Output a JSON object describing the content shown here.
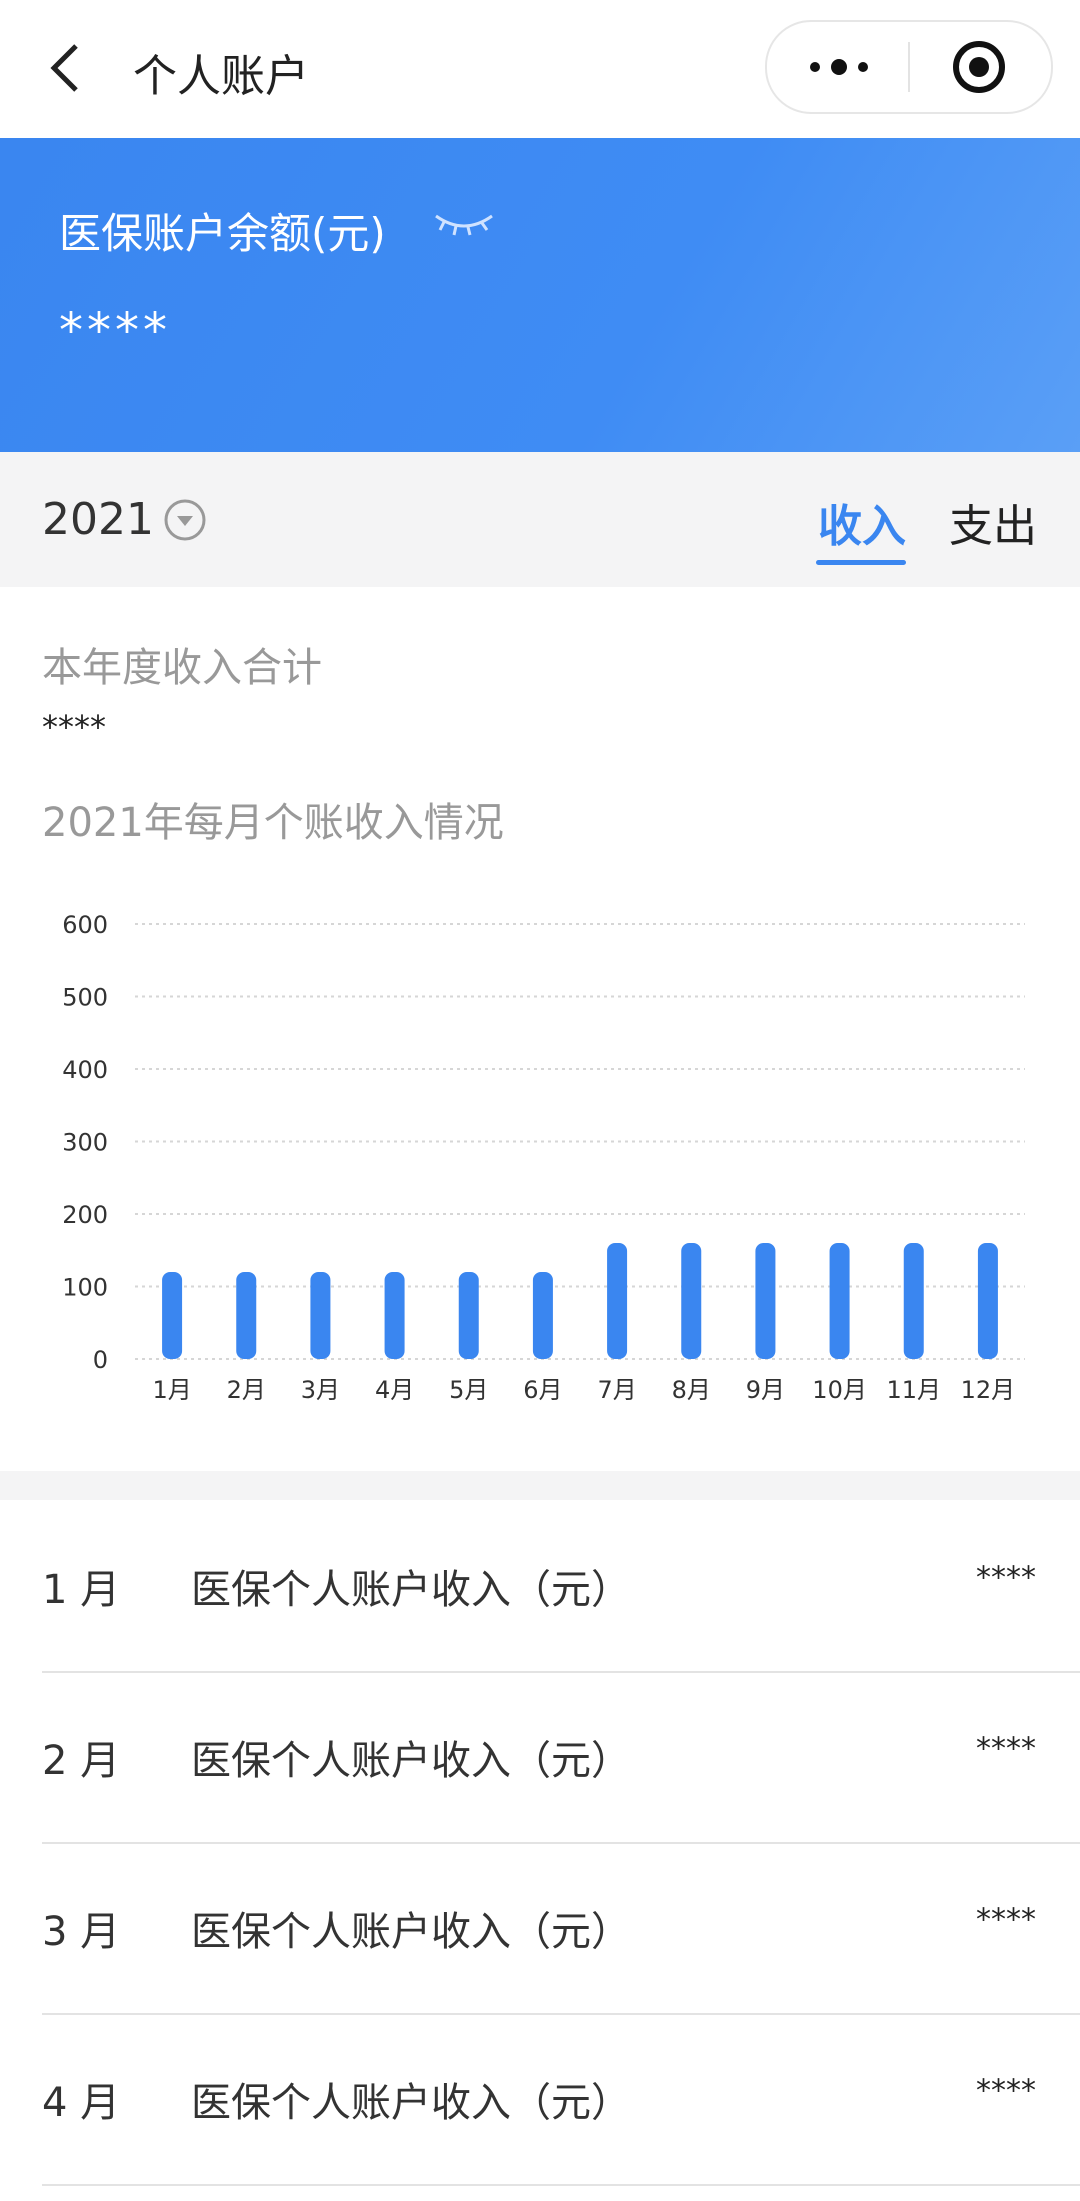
{
  "header": {
    "title": "个人账户"
  },
  "balance": {
    "label": "医保账户余额(元)",
    "value": "****"
  },
  "filter": {
    "year": "2021",
    "tabs": [
      "收入",
      "支出"
    ]
  },
  "summary": {
    "label": "本年度收入合计",
    "value": "****"
  },
  "chart_data": {
    "type": "bar",
    "title": "2021年每月个账收入情况",
    "categories": [
      "1月",
      "2月",
      "3月",
      "4月",
      "5月",
      "6月",
      "7月",
      "8月",
      "9月",
      "10月",
      "11月",
      "12月"
    ],
    "values": [
      120,
      120,
      120,
      120,
      120,
      120,
      160,
      160,
      160,
      160,
      160,
      160
    ],
    "color": "#3a86f0",
    "ylim": [
      0,
      600
    ],
    "yticks": [
      0,
      100,
      200,
      300,
      400,
      500,
      600
    ],
    "grid": true
  },
  "list": {
    "rows": [
      {
        "month": "1 月",
        "label": "医保个人账户收入（元）",
        "value": "****"
      },
      {
        "month": "2 月",
        "label": "医保个人账户收入（元）",
        "value": "****"
      },
      {
        "month": "3 月",
        "label": "医保个人账户收入（元）",
        "value": "****"
      },
      {
        "month": "4 月",
        "label": "医保个人账户收入（元）",
        "value": "****"
      }
    ]
  }
}
